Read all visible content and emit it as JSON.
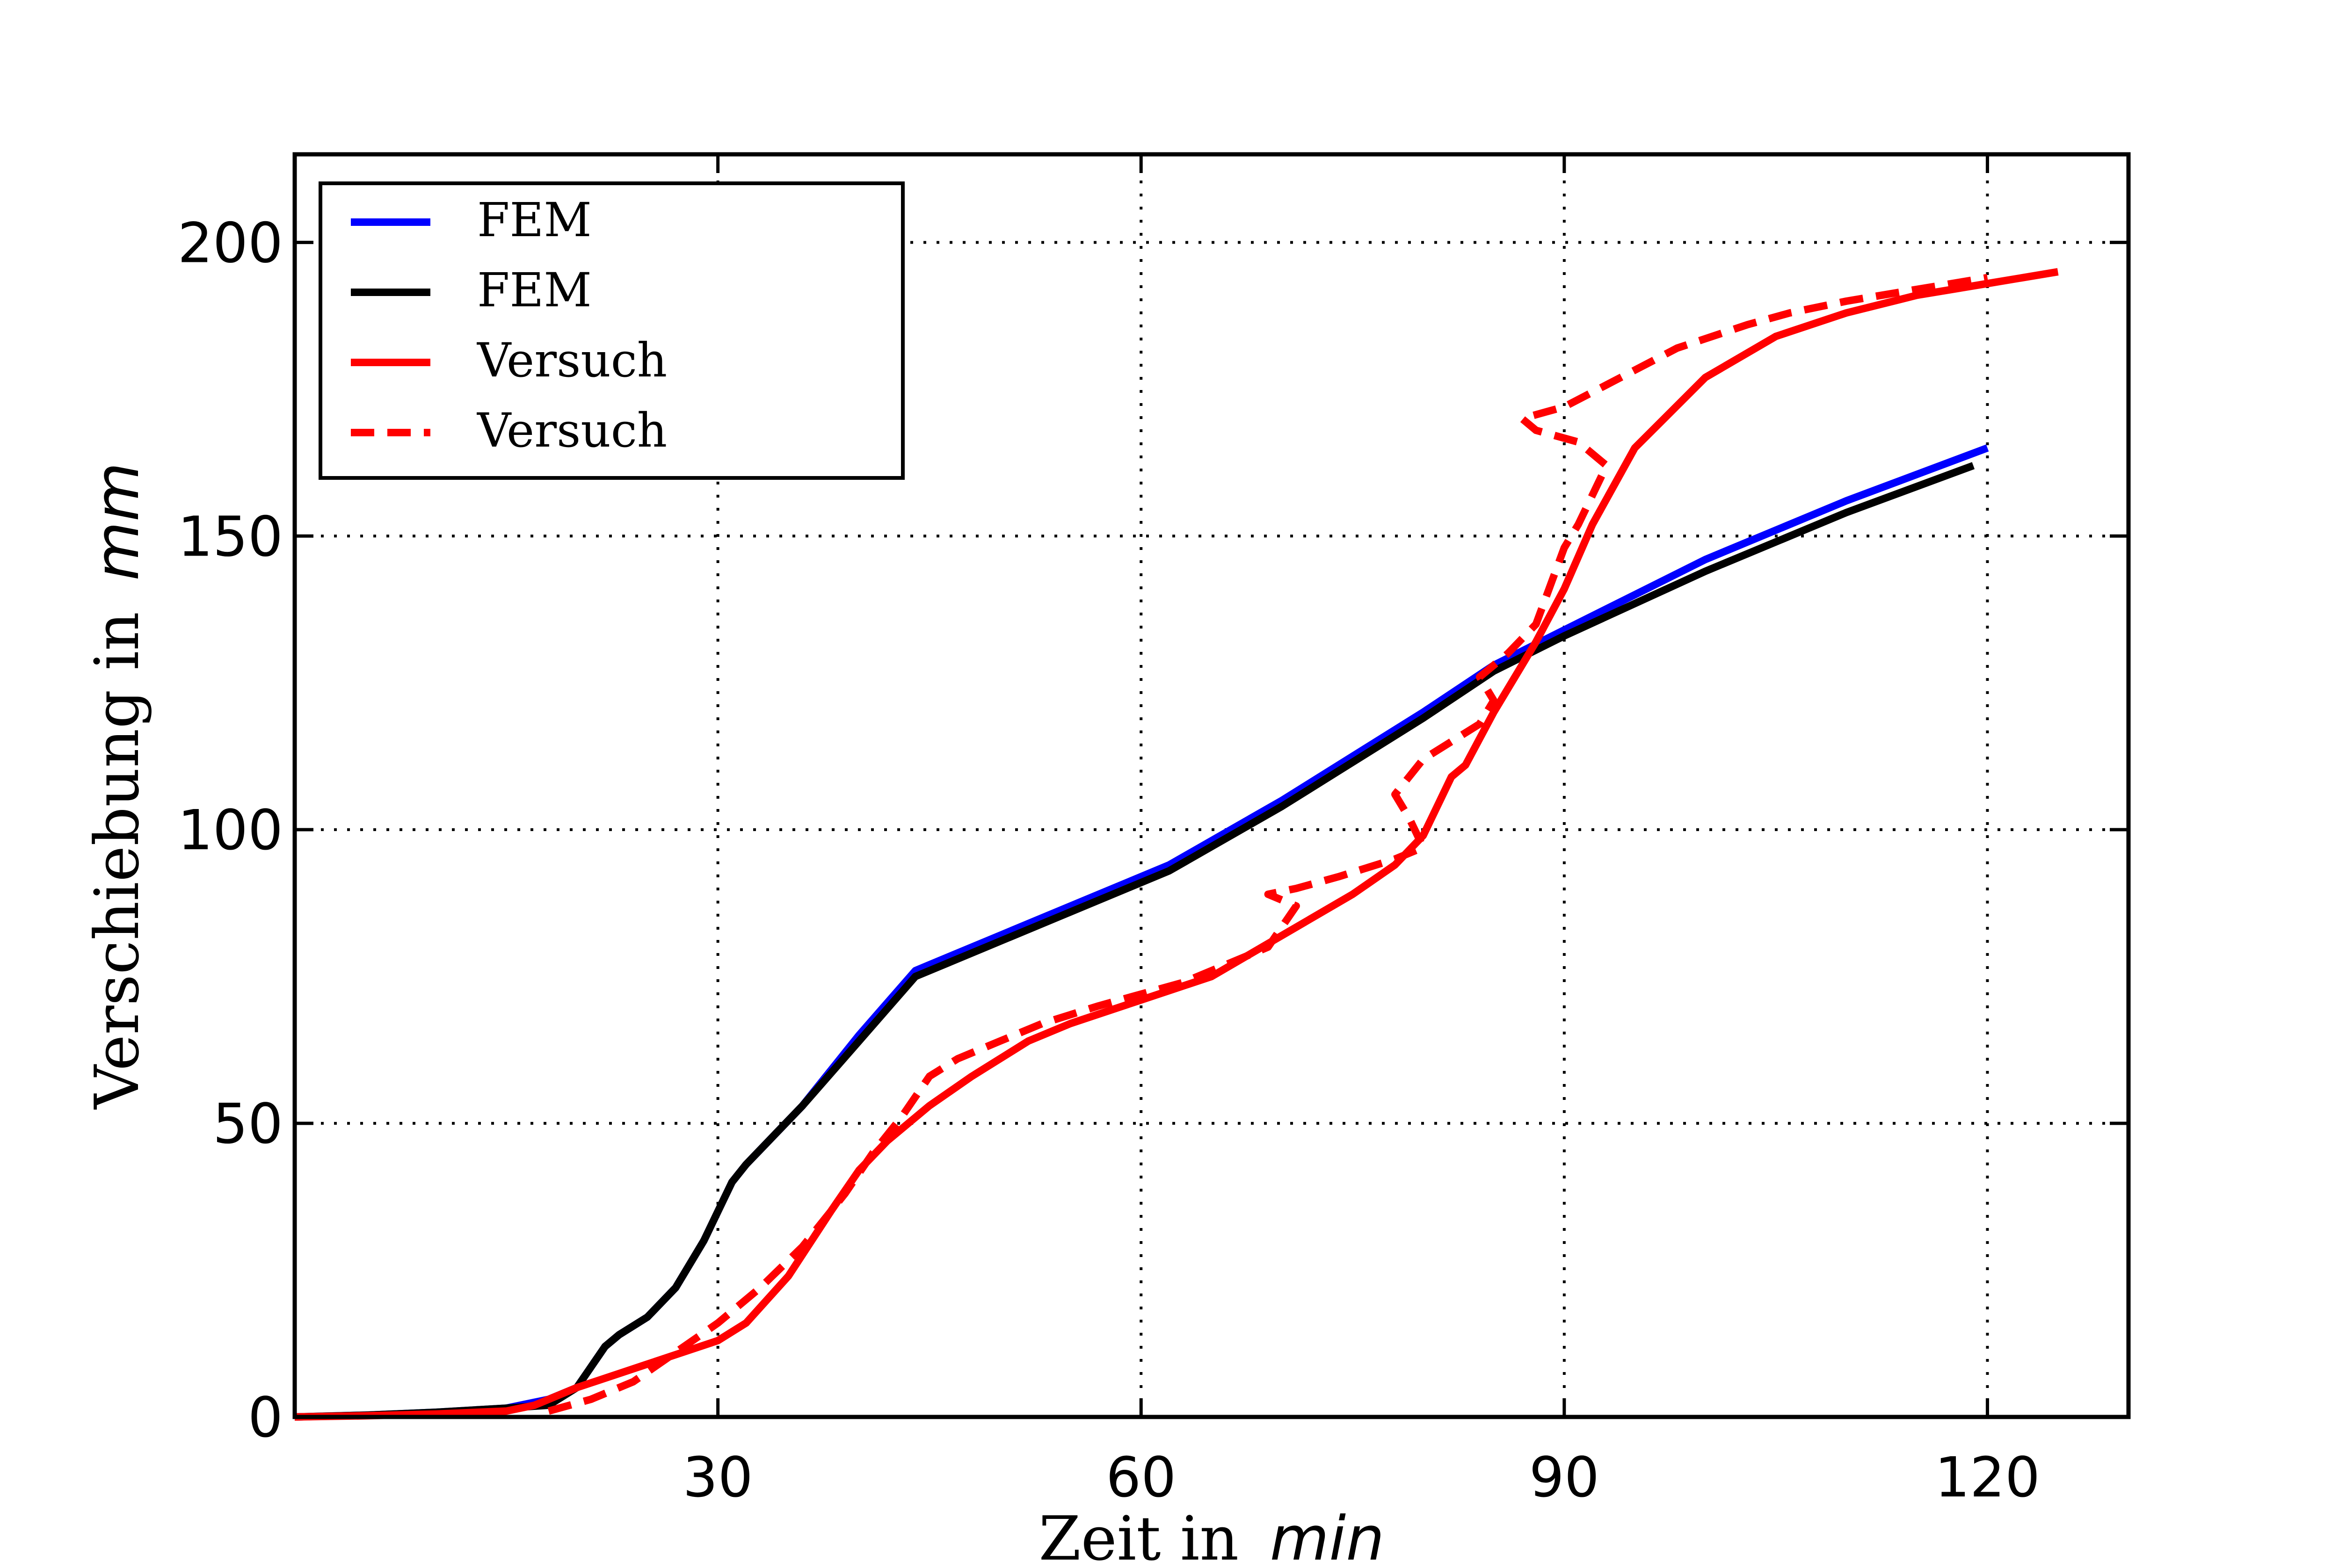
{
  "chart_data": {
    "type": "line",
    "title": "",
    "xlabel": "Zeit in",
    "xlabel_unit": "min",
    "ylabel": "Verschiebung in",
    "ylabel_unit": "mm",
    "xlim": [
      0,
      130
    ],
    "ylim": [
      0,
      215
    ],
    "xticks": [
      30,
      60,
      90,
      120
    ],
    "yticks": [
      0,
      50,
      100,
      150,
      200
    ],
    "grid": true,
    "legend_position": "top-left",
    "series": [
      {
        "name": "FEM",
        "color": "#0000ff",
        "style": "solid",
        "points": [
          [
            0,
            0
          ],
          [
            5,
            0.3
          ],
          [
            10,
            0.8
          ],
          [
            15,
            1.5
          ],
          [
            18,
            3
          ],
          [
            20,
            5
          ],
          [
            22,
            12
          ],
          [
            23,
            14
          ],
          [
            25,
            17
          ],
          [
            27,
            22
          ],
          [
            29,
            30
          ],
          [
            31,
            40
          ],
          [
            32,
            43
          ],
          [
            36,
            53
          ],
          [
            40,
            65
          ],
          [
            44,
            76
          ],
          [
            45,
            77
          ],
          [
            50,
            82
          ],
          [
            55,
            87
          ],
          [
            62,
            94
          ],
          [
            70,
            105
          ],
          [
            80,
            120
          ],
          [
            85,
            128
          ],
          [
            90,
            134
          ],
          [
            100,
            146
          ],
          [
            110,
            156
          ],
          [
            120,
            165
          ]
        ]
      },
      {
        "name": "FEM",
        "color": "#000000",
        "style": "solid",
        "points": [
          [
            0,
            0
          ],
          [
            5,
            0.3
          ],
          [
            10,
            0.8
          ],
          [
            15,
            1.5
          ],
          [
            18,
            2
          ],
          [
            20,
            5
          ],
          [
            22,
            12
          ],
          [
            23,
            14
          ],
          [
            25,
            17
          ],
          [
            27,
            22
          ],
          [
            29,
            30
          ],
          [
            31,
            40
          ],
          [
            32,
            43
          ],
          [
            36,
            53
          ],
          [
            40,
            64
          ],
          [
            44,
            75
          ],
          [
            45,
            76
          ],
          [
            50,
            81
          ],
          [
            55,
            86
          ],
          [
            62,
            93
          ],
          [
            70,
            104
          ],
          [
            80,
            119
          ],
          [
            85,
            127
          ],
          [
            90,
            133
          ],
          [
            100,
            144
          ],
          [
            110,
            154
          ],
          [
            119,
            162
          ]
        ]
      },
      {
        "name": "Versuch",
        "color": "#ff0000",
        "style": "solid",
        "points": [
          [
            0,
            0
          ],
          [
            5,
            0.2
          ],
          [
            10,
            0.5
          ],
          [
            15,
            1
          ],
          [
            17,
            2
          ],
          [
            20,
            5
          ],
          [
            25,
            9
          ],
          [
            30,
            13
          ],
          [
            32,
            16
          ],
          [
            35,
            24
          ],
          [
            38,
            35
          ],
          [
            40,
            42
          ],
          [
            42,
            47
          ],
          [
            45,
            53
          ],
          [
            48,
            58
          ],
          [
            52,
            64
          ],
          [
            55,
            67
          ],
          [
            60,
            71
          ],
          [
            65,
            75
          ],
          [
            70,
            82
          ],
          [
            75,
            89
          ],
          [
            78,
            94
          ],
          [
            80,
            99
          ],
          [
            82,
            109
          ],
          [
            83,
            111
          ],
          [
            85,
            120
          ],
          [
            87,
            128
          ],
          [
            88,
            132
          ],
          [
            90,
            141
          ],
          [
            92,
            152
          ],
          [
            95,
            165
          ],
          [
            100,
            177
          ],
          [
            105,
            184
          ],
          [
            110,
            188
          ],
          [
            115,
            191
          ],
          [
            120,
            193
          ],
          [
            125,
            195
          ]
        ]
      },
      {
        "name": "Versuch",
        "color": "#ff0000",
        "style": "dashed",
        "points": [
          [
            18,
            1
          ],
          [
            21,
            3
          ],
          [
            24,
            6
          ],
          [
            27,
            11
          ],
          [
            30,
            16
          ],
          [
            33,
            22
          ],
          [
            36,
            29
          ],
          [
            39,
            38
          ],
          [
            41,
            45
          ],
          [
            43,
            51
          ],
          [
            45,
            58
          ],
          [
            47,
            61
          ],
          [
            50,
            64
          ],
          [
            53,
            67
          ],
          [
            57,
            70
          ],
          [
            60,
            72
          ],
          [
            63,
            74
          ],
          [
            66,
            77
          ],
          [
            69,
            80
          ],
          [
            71,
            87
          ],
          [
            69,
            89
          ],
          [
            71,
            90
          ],
          [
            74,
            92
          ],
          [
            78,
            95
          ],
          [
            80,
            97
          ],
          [
            79,
            102
          ],
          [
            78,
            106
          ],
          [
            80,
            112
          ],
          [
            84,
            118
          ],
          [
            85,
            122
          ],
          [
            84,
            126
          ],
          [
            86,
            130
          ],
          [
            88,
            135
          ],
          [
            90,
            148
          ],
          [
            91,
            152
          ],
          [
            92,
            157
          ],
          [
            93,
            162
          ],
          [
            91,
            166
          ],
          [
            88,
            168
          ],
          [
            87,
            170
          ],
          [
            90,
            172
          ],
          [
            94,
            177
          ],
          [
            98,
            182
          ],
          [
            103,
            186
          ],
          [
            106,
            188
          ],
          [
            110,
            190
          ],
          [
            115,
            192
          ],
          [
            120,
            194
          ]
        ]
      }
    ]
  }
}
